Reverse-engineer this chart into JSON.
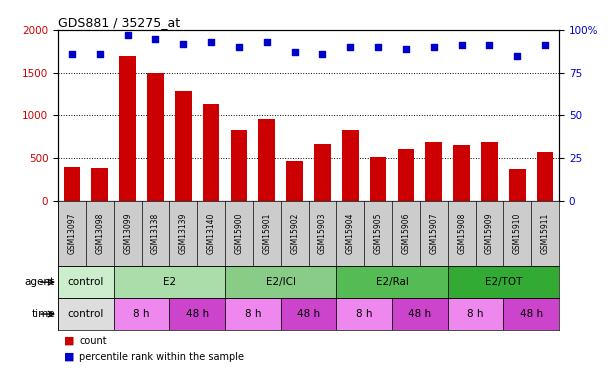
{
  "title": "GDS881 / 35275_at",
  "samples": [
    "GSM13097",
    "GSM13098",
    "GSM13099",
    "GSM13138",
    "GSM13139",
    "GSM13140",
    "GSM15900",
    "GSM15901",
    "GSM15902",
    "GSM15903",
    "GSM15904",
    "GSM15905",
    "GSM15906",
    "GSM15907",
    "GSM15908",
    "GSM15909",
    "GSM15910",
    "GSM15911"
  ],
  "counts": [
    400,
    380,
    1700,
    1500,
    1280,
    1130,
    830,
    960,
    460,
    660,
    830,
    510,
    610,
    690,
    650,
    690,
    370,
    570
  ],
  "percentiles": [
    86,
    86,
    97,
    95,
    92,
    93,
    90,
    93,
    87,
    86,
    90,
    90,
    89,
    90,
    91,
    91,
    85,
    91
  ],
  "bar_color": "#cc0000",
  "dot_color": "#0000cc",
  "ylim_left": [
    0,
    2000
  ],
  "ylim_right": [
    0,
    100
  ],
  "yticks_left": [
    0,
    500,
    1000,
    1500,
    2000
  ],
  "yticks_right": [
    0,
    25,
    50,
    75,
    100
  ],
  "yticklabels_right": [
    "0",
    "25",
    "50",
    "75",
    "100%"
  ],
  "agent_groups": [
    {
      "label": "control",
      "start": 0,
      "end": 2,
      "color": "#cceecc"
    },
    {
      "label": "E2",
      "start": 2,
      "end": 6,
      "color": "#aaddaa"
    },
    {
      "label": "E2/ICI",
      "start": 6,
      "end": 10,
      "color": "#88cc88"
    },
    {
      "label": "E2/Ral",
      "start": 10,
      "end": 14,
      "color": "#55bb55"
    },
    {
      "label": "E2/TOT",
      "start": 14,
      "end": 18,
      "color": "#33aa33"
    }
  ],
  "time_groups": [
    {
      "label": "control",
      "start": 0,
      "end": 2,
      "color": "#dddddd"
    },
    {
      "label": "8 h",
      "start": 2,
      "end": 4,
      "color": "#ee88ee"
    },
    {
      "label": "48 h",
      "start": 4,
      "end": 6,
      "color": "#cc44cc"
    },
    {
      "label": "8 h",
      "start": 6,
      "end": 8,
      "color": "#ee88ee"
    },
    {
      "label": "48 h",
      "start": 8,
      "end": 10,
      "color": "#cc44cc"
    },
    {
      "label": "8 h",
      "start": 10,
      "end": 12,
      "color": "#ee88ee"
    },
    {
      "label": "48 h",
      "start": 12,
      "end": 14,
      "color": "#cc44cc"
    },
    {
      "label": "8 h",
      "start": 14,
      "end": 16,
      "color": "#ee88ee"
    },
    {
      "label": "48 h",
      "start": 16,
      "end": 18,
      "color": "#cc44cc"
    }
  ],
  "xlabel_bg": "#cccccc",
  "legend_count_color": "#cc0000",
  "legend_dot_color": "#0000cc",
  "background_color": "#ffffff"
}
